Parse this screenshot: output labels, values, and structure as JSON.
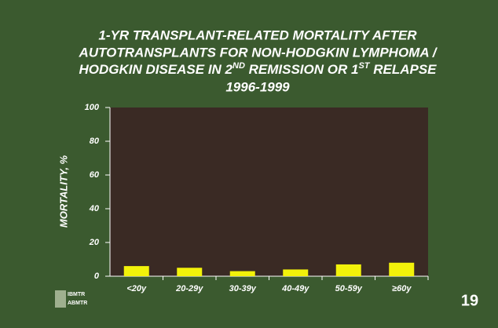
{
  "chart_data": {
    "type": "bar",
    "title": [
      "1-YR TRANSPLANT-RELATED MORTALITY AFTER",
      "AUTOTRANSPLANTS FOR NON-HODGKIN LYMPHOMA /",
      [
        "HODGKIN DISEASE IN 2",
        "ND",
        " REMISSION OR 1",
        "ST",
        " RELAPSE"
      ],
      "1996-1999"
    ],
    "y_label": "MORTALITY, %",
    "categories": [
      "<20y",
      "20-29y",
      "30-39y",
      "40-49y",
      "50-59y",
      "≥60y"
    ],
    "values": [
      6,
      5,
      3,
      4,
      7,
      8
    ],
    "color": "#f2f20a",
    "ylim": [
      0,
      100
    ],
    "yticks": [
      0,
      20,
      40,
      60,
      80,
      100
    ]
  },
  "logo": [
    "IBMTR",
    "ABMTR"
  ],
  "page_number": "19"
}
